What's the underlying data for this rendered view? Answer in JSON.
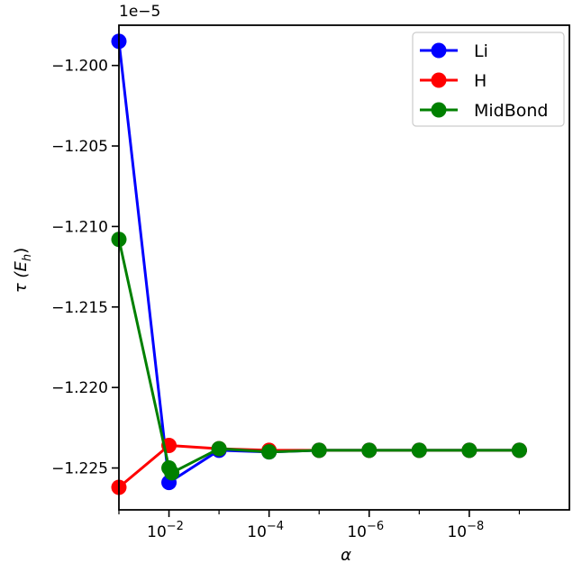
{
  "chart_data": {
    "type": "line",
    "xlabel": "α",
    "ylabel": "τ (E",
    "ylabel_sub": "h",
    "ylabel_close": ")",
    "y_offset_label": "1e−5",
    "xscale": "log",
    "xaxis_inverted": true,
    "xlim": [
      0.1,
      1e-10
    ],
    "ylim": [
      -1.2276,
      -1.1975
    ],
    "ytick_values": [
      -1.225,
      -1.22,
      -1.215,
      -1.21,
      -1.205,
      -1.2
    ],
    "ytick_labels": [
      "−1.225",
      "−1.220",
      "−1.215",
      "−1.210",
      "−1.205",
      "−1.200"
    ],
    "xtick_values": [
      0.01,
      0.0001,
      1e-06,
      1e-08
    ],
    "xtick_bases": [
      "10",
      "10",
      "10",
      "10"
    ],
    "xtick_exponents": [
      "−2",
      "−4",
      "−6",
      "−8"
    ],
    "grid": false,
    "legend_position": "top-right",
    "series": [
      {
        "name": "Li",
        "color": "#0000ff",
        "x": [
          0.1,
          0.01,
          0.001,
          0.0001,
          1e-05,
          1e-06,
          1e-07,
          1e-08,
          1e-09
        ],
        "y": [
          -1.1985,
          -1.2259,
          -1.2239,
          -1.224,
          -1.2239,
          -1.2239,
          -1.2239,
          -1.2239,
          -1.2239
        ]
      },
      {
        "name": "H",
        "color": "#ff0000",
        "x": [
          0.1,
          0.01,
          0.001,
          0.0001,
          1e-05,
          1e-06,
          1e-07,
          1e-08,
          1e-09
        ],
        "y": [
          -1.2262,
          -1.2236,
          -1.2238,
          -1.2239,
          -1.2239,
          -1.2239,
          -1.2239,
          -1.2239,
          -1.2239
        ]
      },
      {
        "name": "MidBond",
        "color": "#008000",
        "x": [
          0.1,
          0.01,
          0.0088,
          0.001,
          0.0001,
          1e-05,
          1e-06,
          1e-07,
          1e-08,
          1e-09
        ],
        "y": [
          -1.2108,
          -1.225,
          -1.2253,
          -1.2238,
          -1.224,
          -1.2239,
          -1.2239,
          -1.2239,
          -1.2239,
          -1.2239
        ]
      }
    ]
  }
}
